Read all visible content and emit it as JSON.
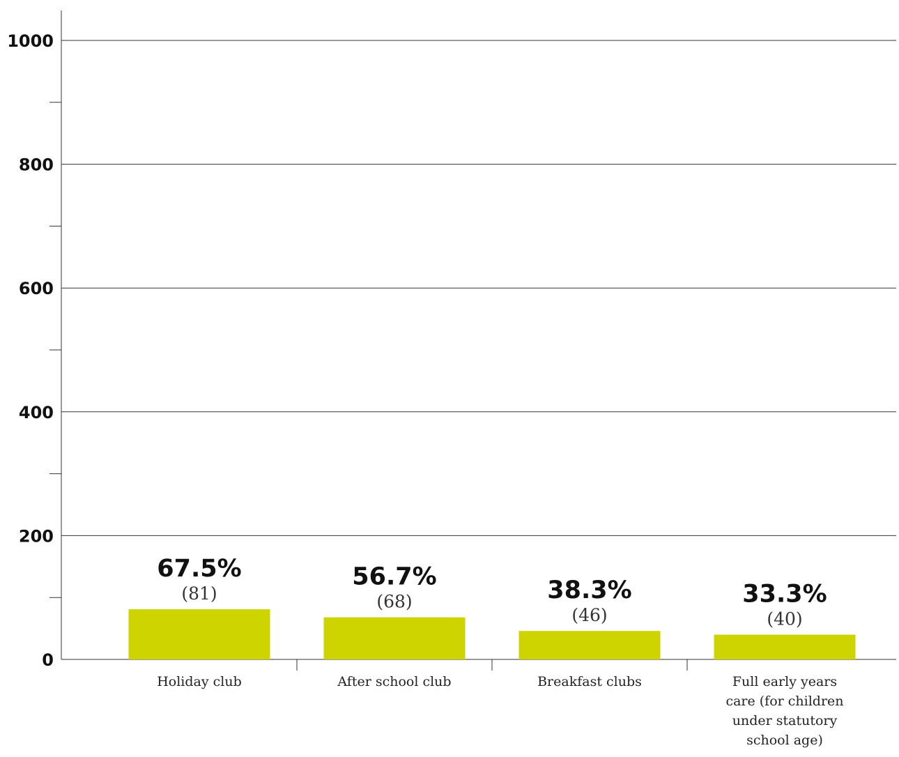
{
  "chart_data": {
    "type": "bar",
    "categories": [
      [
        "Holiday club"
      ],
      [
        "After school club"
      ],
      [
        "Breakfast clubs"
      ],
      [
        "Full early years",
        "care (for children",
        "under statutory",
        "school age)"
      ]
    ],
    "values": [
      81,
      68,
      46,
      40
    ],
    "percent_labels": [
      "67.5%",
      "56.7%",
      "38.3%",
      "33.3%"
    ],
    "count_labels": [
      "(81)",
      "(68)",
      "(46)",
      "(40)"
    ],
    "ylim": [
      0,
      1000
    ],
    "y_ticks": [
      "0",
      "200",
      "400",
      "600",
      "800",
      "1000"
    ],
    "y_minor_step": 100,
    "grid": true,
    "legend": false,
    "bar_color": "#cdd400",
    "title": "",
    "xlabel": "",
    "ylabel": ""
  }
}
